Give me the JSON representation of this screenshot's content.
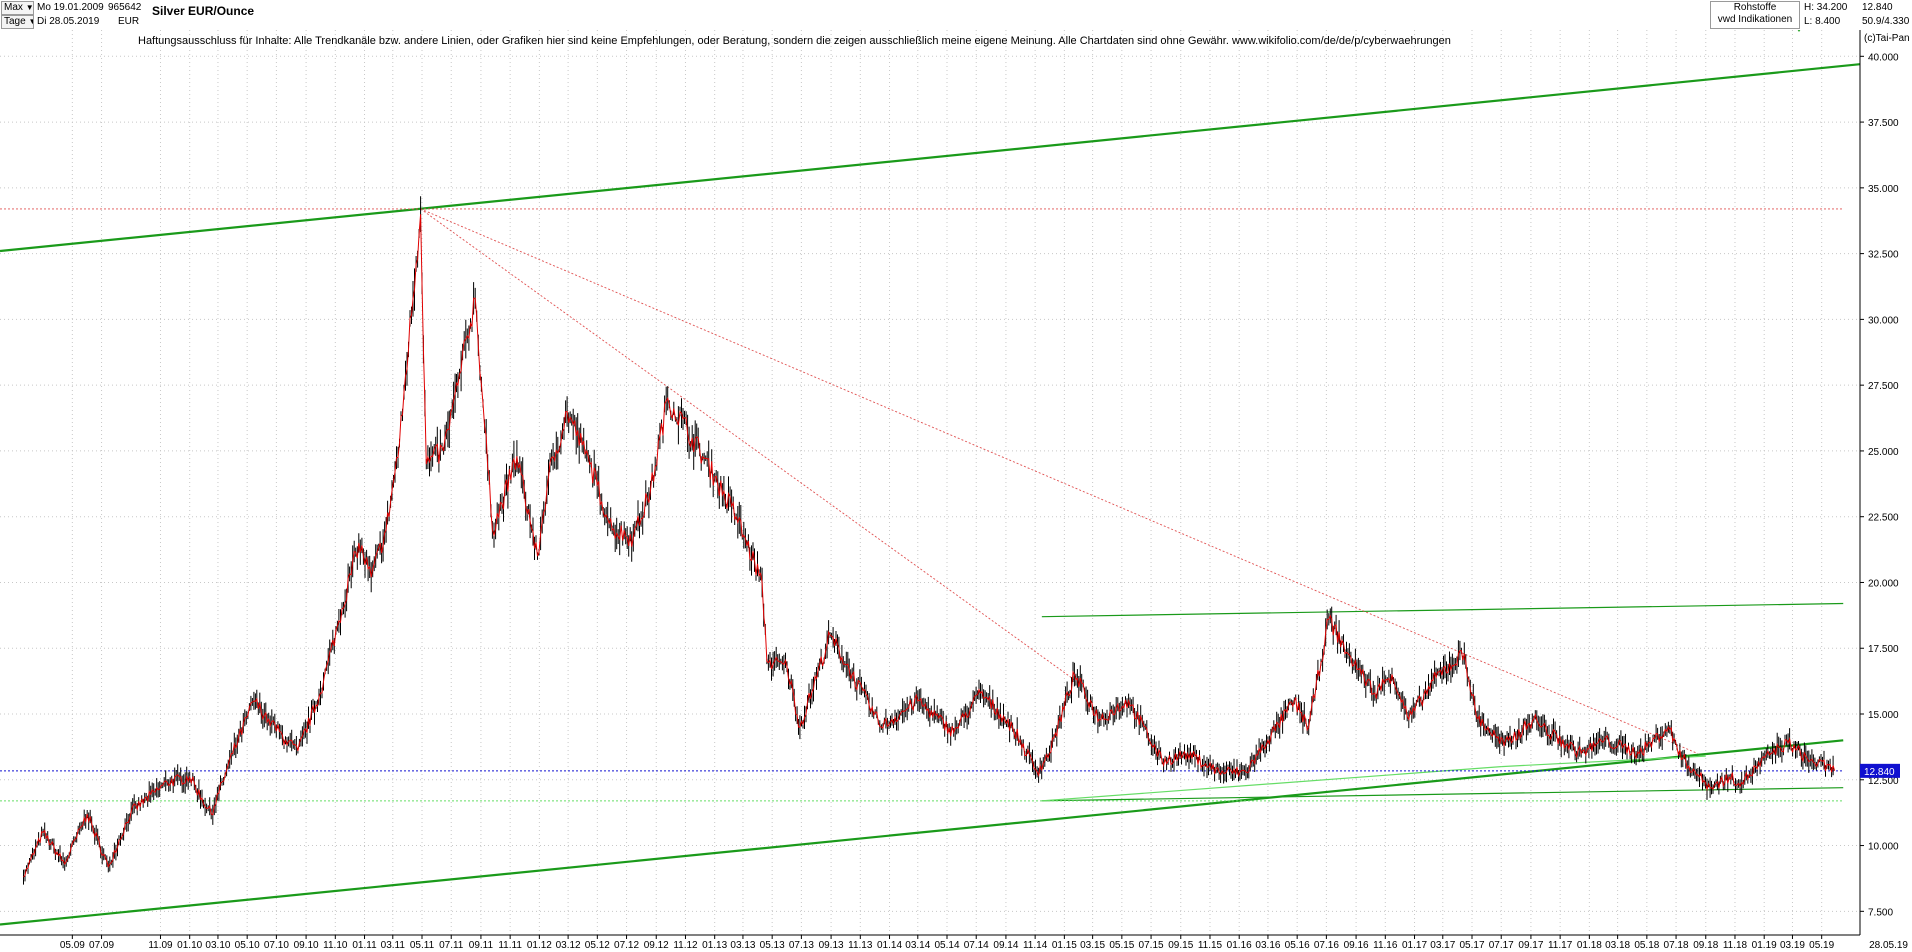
{
  "toolbar": {
    "period_select": "Max",
    "unit_select": "Tage",
    "start_date": "Mo 19.01.2009",
    "end_date": "Di 28.05.2019",
    "wkn": "965642",
    "currency": "EUR",
    "instrument_title": "Silver EUR/Ounce",
    "category": "Rohstoffe",
    "source": "vwd Indikationen",
    "high": "H: 34.200",
    "low": "L: 8.400",
    "last_value": "12.840",
    "pct": "50.9/4.330"
  },
  "copyright": "(c)Tai-Pan",
  "disclaimer": "Haftungsausschluss für Inhalte: Alle Trendkanäle bzw. andere Linien, oder Grafiken hier sind keine Empfehlungen, oder Beratung, sondern die zeigen ausschließlich meine eigene Meinung. Alle Chartdaten sind ohne Gewähr.  www.wikifolio.com/de/de/p/cyberwaehrungen",
  "colors": {
    "candles": "#000000",
    "price_line": "#e00000",
    "channel": "#1a9a1a",
    "light_green": "#66dd66",
    "red_dotted": "#e05050",
    "price_marker": "#1010d0",
    "grid": "#c8c8c8"
  },
  "chart_data": {
    "type": "line",
    "title": "Silver EUR/Ounce",
    "y_ticks": [
      "7.500",
      "10.000",
      "12.500",
      "15.000",
      "17.500",
      "20.000",
      "22.500",
      "25.000",
      "27.500",
      "30.000",
      "32.500",
      "35.000",
      "37.500",
      "40.000"
    ],
    "ylim": [
      6.6,
      41.0
    ],
    "x_ticks": [
      "05.09",
      "07.09",
      "11.09",
      "01.10",
      "03.10",
      "05.10",
      "07.10",
      "09.10",
      "11.10",
      "01.11",
      "03.11",
      "05.11",
      "07.11",
      "09.11",
      "11.11",
      "01.12",
      "03.12",
      "05.12",
      "07.12",
      "09.12",
      "11.12",
      "01.13",
      "03.13",
      "05.13",
      "07.13",
      "09.13",
      "11.13",
      "01.14",
      "03.14",
      "05.14",
      "07.14",
      "09.14",
      "11.14",
      "01.15",
      "03.15",
      "05.15",
      "07.15",
      "09.15",
      "11.15",
      "01.16",
      "03.16",
      "05.16",
      "07.16",
      "09.16",
      "11.16",
      "01.17",
      "03.17",
      "05.17",
      "07.17",
      "09.17",
      "11.17",
      "01.18",
      "03.18",
      "05.18",
      "07.18",
      "09.18",
      "11.18",
      "01.19",
      "03.19",
      "05.19"
    ],
    "x_end_label": "28.05.19",
    "x_range": [
      "2009-01-19",
      "2019-05-28"
    ],
    "series": [
      {
        "values": [
          [
            "2009-01-19",
            8.8
          ],
          [
            "2009-03-01",
            10.5
          ],
          [
            "2009-04-15",
            9.3
          ],
          [
            "2009-06-01",
            11.2
          ],
          [
            "2009-07-15",
            9.2
          ],
          [
            "2009-09-01",
            11.3
          ],
          [
            "2009-11-15",
            12.4
          ],
          [
            "2010-01-01",
            12.6
          ],
          [
            "2010-02-15",
            11.2
          ],
          [
            "2010-04-01",
            13.5
          ],
          [
            "2010-05-15",
            15.5
          ],
          [
            "2010-06-15",
            14.8
          ],
          [
            "2010-07-20",
            14.0
          ],
          [
            "2010-08-15",
            13.6
          ],
          [
            "2010-10-01",
            15.8
          ],
          [
            "2010-11-15",
            19.0
          ],
          [
            "2010-12-20",
            21.5
          ],
          [
            "2011-01-15",
            20.2
          ],
          [
            "2011-02-15",
            22.0
          ],
          [
            "2011-03-15",
            25.3
          ],
          [
            "2011-04-28",
            34.0
          ],
          [
            "2011-05-10",
            24.5
          ],
          [
            "2011-06-15",
            25.0
          ],
          [
            "2011-07-15",
            27.5
          ],
          [
            "2011-08-20",
            30.8
          ],
          [
            "2011-09-25",
            22.0
          ],
          [
            "2011-10-15",
            23.0
          ],
          [
            "2011-11-15",
            24.8
          ],
          [
            "2011-12-28",
            21.0
          ],
          [
            "2012-01-20",
            24.0
          ],
          [
            "2012-02-28",
            26.5
          ],
          [
            "2012-04-15",
            24.5
          ],
          [
            "2012-06-01",
            22.0
          ],
          [
            "2012-07-15",
            21.7
          ],
          [
            "2012-08-20",
            23.5
          ],
          [
            "2012-09-25",
            27.0
          ],
          [
            "2012-11-15",
            25.5
          ],
          [
            "2013-01-01",
            24.0
          ],
          [
            "2013-02-15",
            22.5
          ],
          [
            "2013-04-10",
            20.0
          ],
          [
            "2013-04-20",
            17.0
          ],
          [
            "2013-06-01",
            16.8
          ],
          [
            "2013-06-28",
            14.5
          ],
          [
            "2013-08-30",
            18.0
          ],
          [
            "2013-10-15",
            16.5
          ],
          [
            "2013-12-15",
            14.5
          ],
          [
            "2014-03-01",
            15.5
          ],
          [
            "2014-05-15",
            14.3
          ],
          [
            "2014-07-10",
            15.8
          ],
          [
            "2014-09-15",
            14.5
          ],
          [
            "2014-11-05",
            12.8
          ],
          [
            "2014-12-01",
            13.5
          ],
          [
            "2015-01-22",
            16.5
          ],
          [
            "2015-03-15",
            14.8
          ],
          [
            "2015-05-15",
            15.5
          ],
          [
            "2015-07-24",
            13.2
          ],
          [
            "2015-09-15",
            13.5
          ],
          [
            "2015-11-20",
            12.8
          ],
          [
            "2016-01-15",
            12.8
          ],
          [
            "2016-03-01",
            14.0
          ],
          [
            "2016-04-25",
            15.5
          ],
          [
            "2016-05-25",
            14.5
          ],
          [
            "2016-07-06",
            18.6
          ],
          [
            "2016-08-15",
            17.3
          ],
          [
            "2016-10-10",
            15.8
          ],
          [
            "2016-11-15",
            16.5
          ],
          [
            "2016-12-20",
            14.8
          ],
          [
            "2017-02-15",
            16.4
          ],
          [
            "2017-04-15",
            17.3
          ],
          [
            "2017-05-10",
            14.9
          ],
          [
            "2017-07-07",
            13.8
          ],
          [
            "2017-09-07",
            14.8
          ],
          [
            "2017-10-15",
            14.2
          ],
          [
            "2017-12-15",
            13.5
          ],
          [
            "2018-02-01",
            14.0
          ],
          [
            "2018-04-15",
            13.5
          ],
          [
            "2018-06-15",
            14.5
          ],
          [
            "2018-07-15",
            13.3
          ],
          [
            "2018-09-10",
            12.2
          ],
          [
            "2018-10-20",
            12.6
          ],
          [
            "2018-11-15",
            12.4
          ],
          [
            "2019-01-15",
            13.5
          ],
          [
            "2019-02-20",
            13.9
          ],
          [
            "2019-04-01",
            13.3
          ],
          [
            "2019-05-28",
            12.84
          ]
        ]
      }
    ],
    "trendlines": [
      {
        "style": "thick-green",
        "from": [
          "2008-12-01",
          32.6
        ],
        "to": [
          "2019-07-20",
          39.7
        ]
      },
      {
        "style": "thick-green",
        "from": [
          "2008-12-01",
          7.0
        ],
        "to": [
          "2019-06-15",
          14.0
        ]
      },
      {
        "style": "thin-green",
        "from": [
          "2014-11-15",
          18.7
        ],
        "to": [
          "2019-06-15",
          19.2
        ]
      },
      {
        "style": "thin-green",
        "from": [
          "2014-11-15",
          11.7
        ],
        "to": [
          "2019-06-15",
          12.2
        ]
      },
      {
        "style": "light-green-dotted",
        "from": [
          "2008-12-01",
          11.7
        ],
        "to": [
          "2019-06-15",
          11.7
        ]
      },
      {
        "style": "light-green",
        "from": [
          "2014-11-15",
          11.7
        ],
        "to": [
          "2017-07-01",
          13.0
        ]
      },
      {
        "style": "light-green",
        "from": [
          "2017-07-01",
          13.0
        ],
        "to": [
          "2018-09-01",
          13.4
        ]
      },
      {
        "style": "red-dotted",
        "from": [
          "2008-12-01",
          34.2
        ],
        "to": [
          "2019-06-15",
          34.2
        ]
      },
      {
        "style": "red-dotted",
        "from": [
          "2011-04-28",
          34.2
        ],
        "to": [
          "2018-08-15",
          13.5
        ]
      },
      {
        "style": "red-dotted",
        "from": [
          "2011-04-28",
          34.2
        ],
        "to": [
          "2015-01-22",
          16.3
        ]
      },
      {
        "style": "blue-dotted",
        "from": [
          "2008-12-01",
          12.84
        ],
        "to": [
          "2019-06-15",
          12.84
        ]
      }
    ],
    "last_value_marker": "12.840",
    "grid": true
  }
}
